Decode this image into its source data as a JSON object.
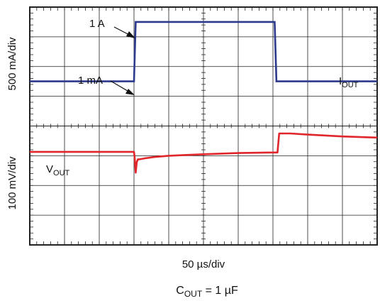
{
  "chart_data": {
    "type": "line",
    "grid": true,
    "divisions": {
      "x": 10,
      "y": 8
    },
    "xlabel": "50 µs/div",
    "caption": {
      "main": "C",
      "sub": "OUT",
      "rest": " = 1 µF"
    },
    "colors": {
      "iout": "#2b3a8c",
      "vout": "#e0262b",
      "grid": "#222222",
      "background": "#ffffff"
    },
    "series": [
      {
        "name_main": "I",
        "name_sub": "OUT",
        "ylabel": "500 mA/div",
        "unit": "mA",
        "x_div": [
          0,
          3.0,
          3.05,
          7.05,
          7.1,
          10
        ],
        "y_value": [
          1,
          1,
          1000,
          1000,
          1,
          1
        ]
      },
      {
        "name_main": "V",
        "name_sub": "OUT",
        "ylabel": "100 mV/div",
        "unit": "mV deviation",
        "x_div": [
          0,
          3.0,
          3.02,
          3.05,
          3.08,
          3.11,
          3.16,
          3.3,
          3.6,
          4.0,
          5.0,
          6.0,
          7.0,
          7.13,
          7.18,
          7.5,
          8.0,
          9.0,
          10
        ],
        "y_value": [
          0,
          0,
          -20,
          -70,
          -35,
          -25,
          -25,
          -22,
          -17,
          -13,
          -8,
          -4,
          -2,
          -2,
          62,
          62,
          58,
          52,
          48
        ]
      }
    ],
    "annotations": [
      {
        "text": "1 A",
        "points_to": "top of current step"
      },
      {
        "text": "1 mA",
        "points_to": "bottom of current step"
      }
    ]
  }
}
